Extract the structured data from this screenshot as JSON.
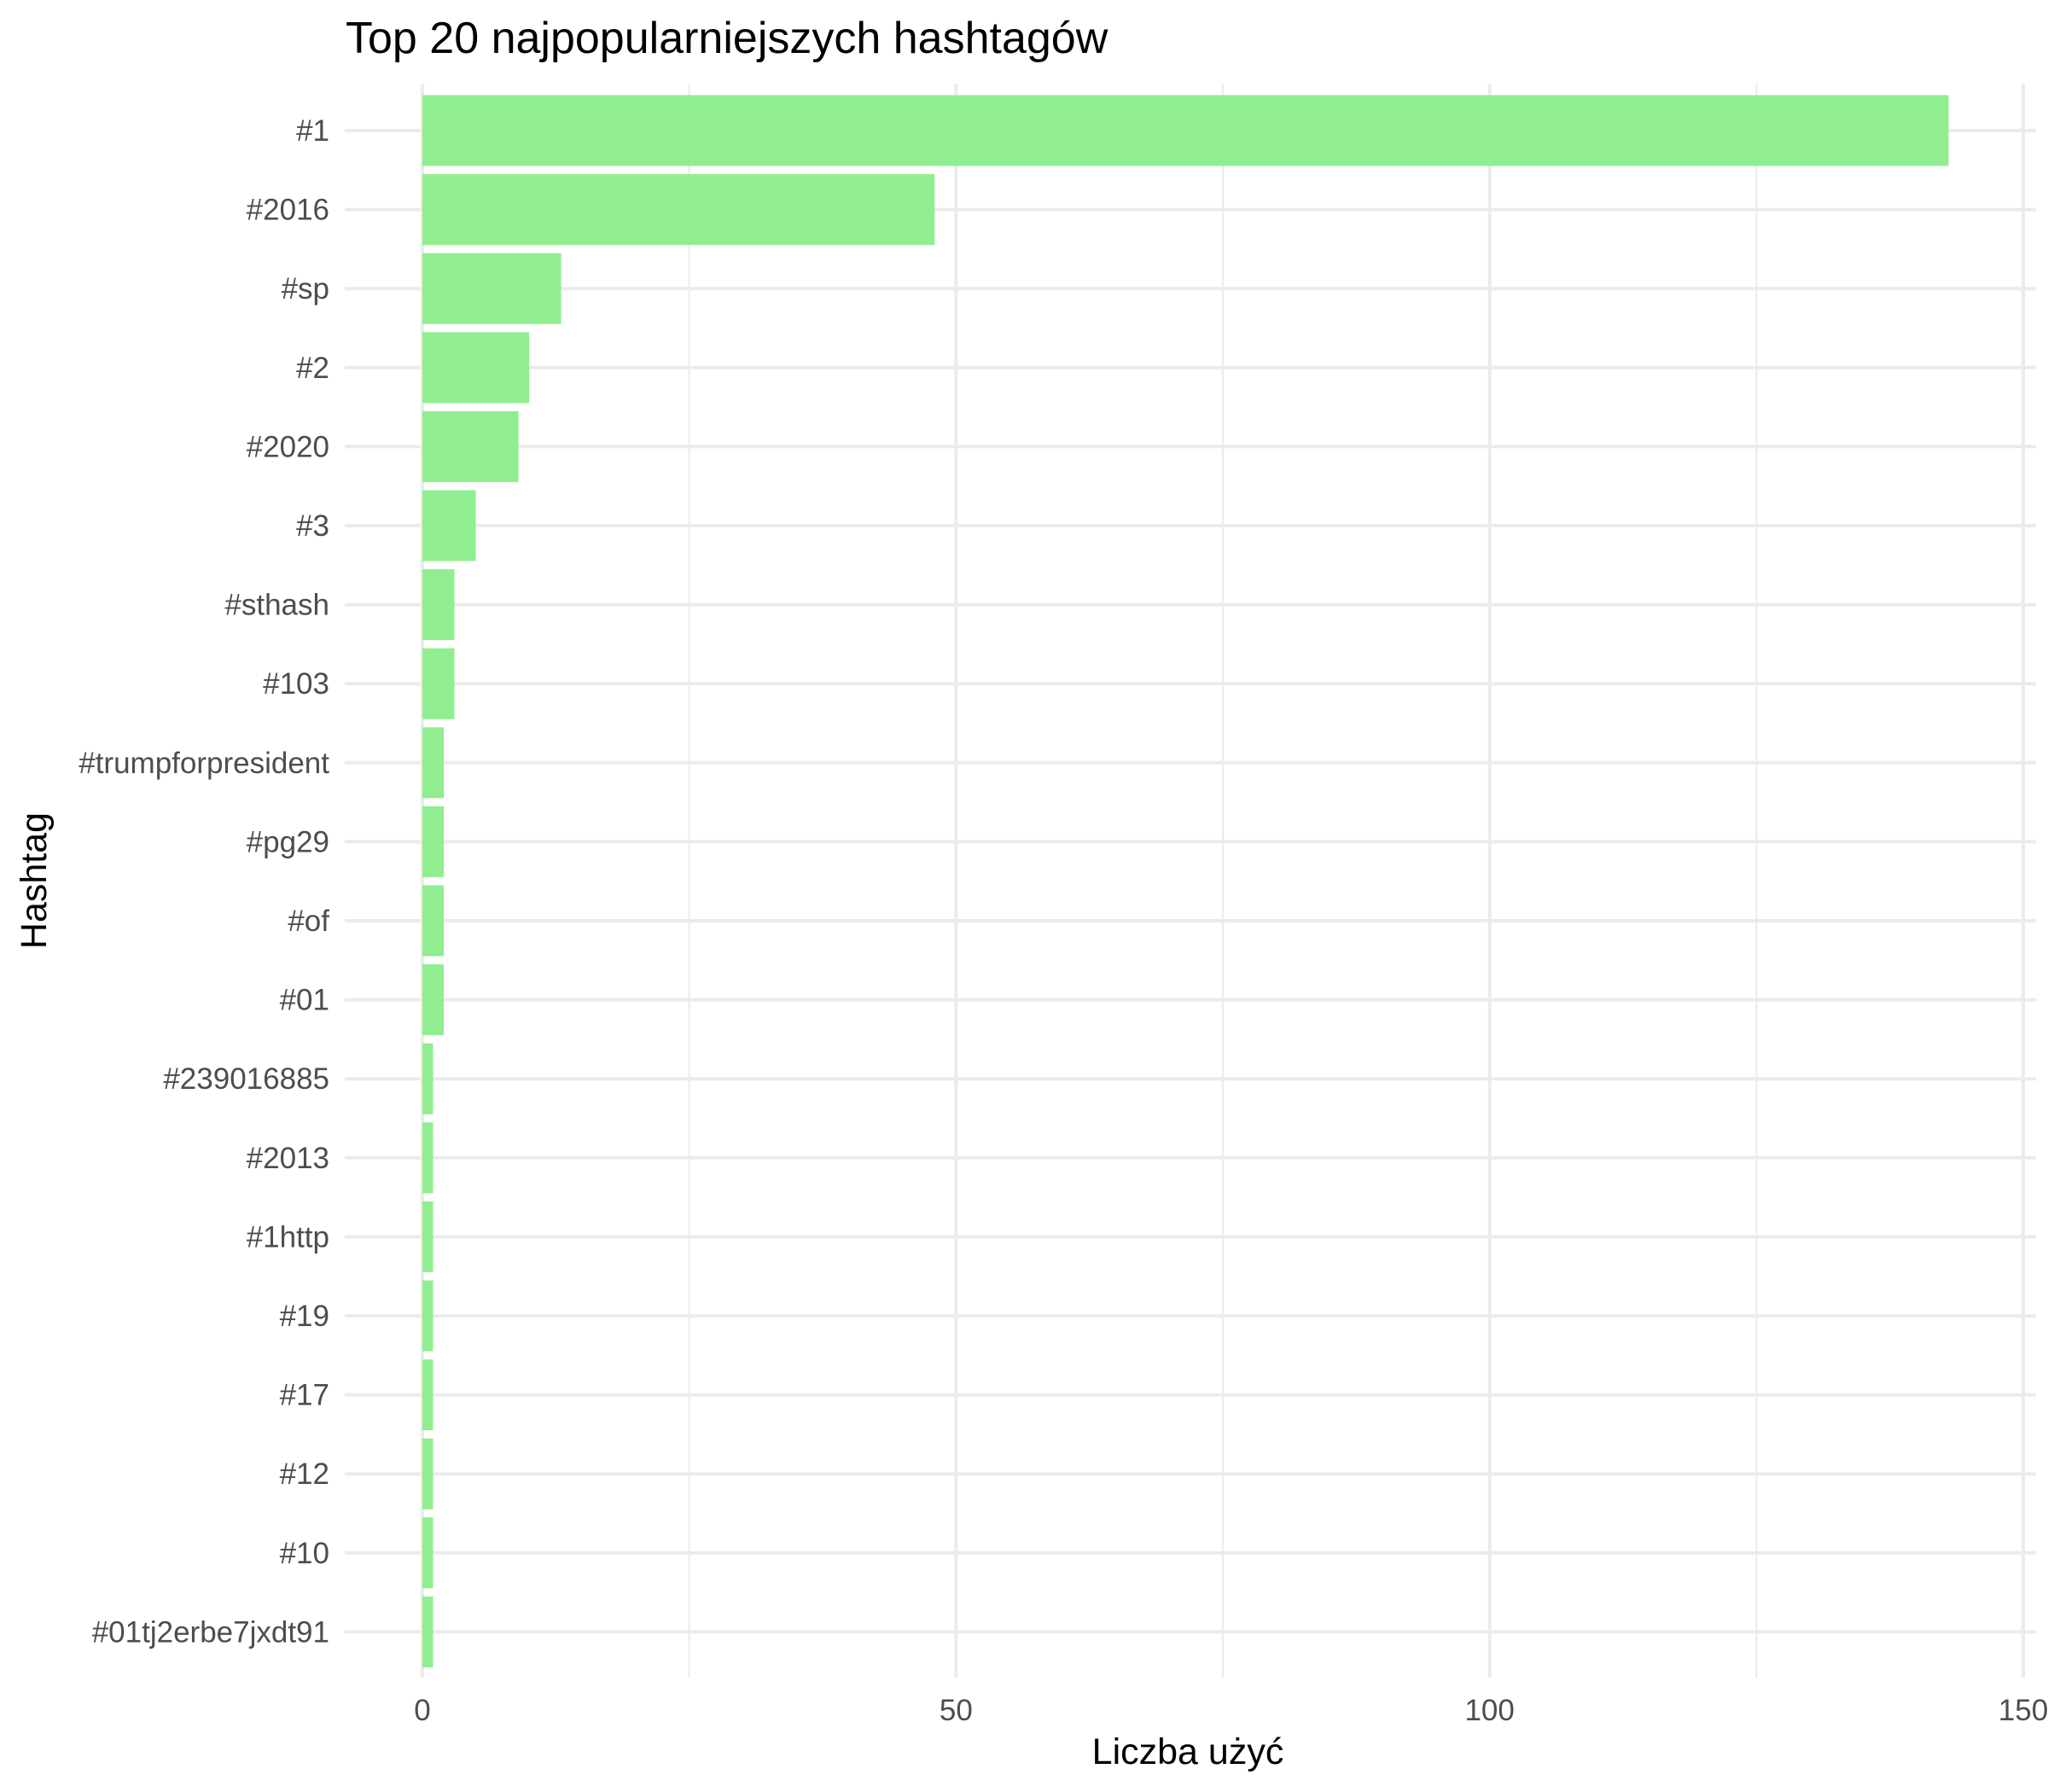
{
  "chart_data": {
    "type": "bar",
    "orientation": "horizontal",
    "title": "Top 20 najpopularniejszych hashtagów",
    "xlabel": "Liczba użyć",
    "ylabel": "Hashtag",
    "categories": [
      "#1",
      "#2016",
      "#sp",
      "#2",
      "#2020",
      "#3",
      "#sthash",
      "#103",
      "#trumpforpresident",
      "#pg29",
      "#of",
      "#01",
      "#239016885",
      "#2013",
      "#1http",
      "#19",
      "#17",
      "#12",
      "#10",
      "#01tj2erbe7jxdt91"
    ],
    "values": [
      143,
      48,
      13,
      10,
      9,
      5,
      3,
      3,
      2,
      2,
      2,
      2,
      1,
      1,
      1,
      1,
      1,
      1,
      1,
      1
    ],
    "xlim": [
      0,
      150
    ],
    "xticks": [
      0,
      50,
      100,
      150
    ],
    "bar_color": "#90EE90",
    "grid_color": "#EBEBEB",
    "grid": true,
    "legend": "none"
  }
}
